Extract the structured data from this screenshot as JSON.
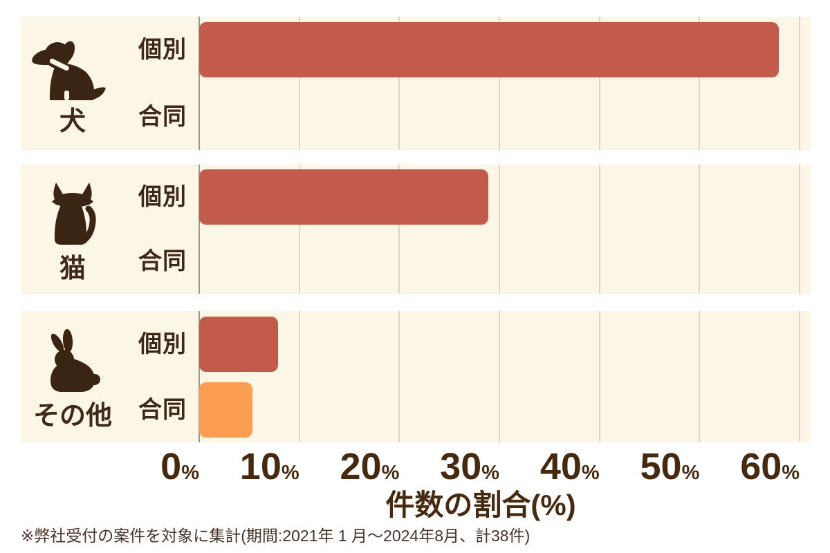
{
  "chart_data": {
    "type": "bar",
    "orientation": "horizontal",
    "categories": [
      {
        "label": "犬",
        "icon": "dog-icon"
      },
      {
        "label": "猫",
        "icon": "cat-icon"
      },
      {
        "label": "その他",
        "icon": "rabbit-icon"
      }
    ],
    "series": [
      {
        "name": "個別",
        "color": "#C25B4B",
        "values": [
          57.9,
          28.9,
          7.9
        ]
      },
      {
        "name": "合同",
        "color": "#FB9D53",
        "values": [
          0,
          0,
          5.3
        ]
      }
    ],
    "x_ticks": [
      0,
      10,
      20,
      30,
      40,
      50,
      60
    ],
    "tick_suffix": "%",
    "xlim": [
      0,
      61.1
    ],
    "grid": true,
    "legend": "none",
    "xlabel": "件数の割合(%)",
    "total_cases_note": "計38件"
  },
  "footnote": "※弊社受付の案件を対象に集計(期間:2021年 1 月～2024年8月、計38件)",
  "colors": {
    "panel_bg": "#FCF6E7",
    "bar_individual": "#C25B4B",
    "bar_joint": "#FB9D53",
    "text_dark": "#3E2817",
    "axis_text": "#46290F",
    "footnote_text": "#4A3226",
    "gridline": "#D9D6CA",
    "zero_line": "#9B978A",
    "icon_ink": "#3A2414"
  }
}
